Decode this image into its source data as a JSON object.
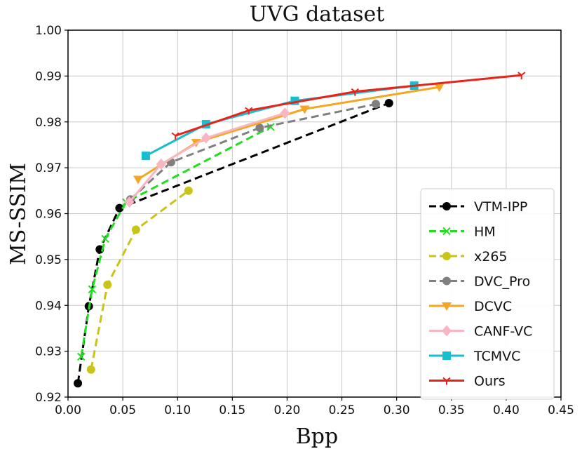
{
  "chart_data": {
    "type": "line",
    "title": "UVG dataset",
    "xlabel": "Bpp",
    "ylabel": "MS-SSIM",
    "xlim": [
      0.0,
      0.45
    ],
    "ylim": [
      0.92,
      1.0
    ],
    "xticks": [
      0.0,
      0.05,
      0.1,
      0.15,
      0.2,
      0.25,
      0.3,
      0.35,
      0.4,
      0.45
    ],
    "xtick_labels": [
      "0.00",
      "0.05",
      "0.10",
      "0.15",
      "0.20",
      "0.25",
      "0.30",
      "0.35",
      "0.40",
      "0.45"
    ],
    "yticks": [
      0.92,
      0.93,
      0.94,
      0.95,
      0.96,
      0.97,
      0.98,
      0.99,
      1.0
    ],
    "ytick_labels": [
      "0.92",
      "0.93",
      "0.94",
      "0.95",
      "0.96",
      "0.97",
      "0.98",
      "0.99",
      "1.00"
    ],
    "grid": true,
    "legend_position": "lower-right",
    "series": [
      {
        "name": "VTM-IPP",
        "color": "#000000",
        "linestyle": "dashed",
        "marker": "circle",
        "points": [
          [
            0.009,
            0.923
          ],
          [
            0.019,
            0.9398
          ],
          [
            0.029,
            0.9522
          ],
          [
            0.047,
            0.9612
          ],
          [
            0.293,
            0.9841
          ]
        ]
      },
      {
        "name": "HM",
        "color": "#22dd22",
        "linestyle": "dashed",
        "marker": "x",
        "points": [
          [
            0.012,
            0.9288
          ],
          [
            0.022,
            0.9435
          ],
          [
            0.034,
            0.9545
          ],
          [
            0.053,
            0.9625
          ],
          [
            0.185,
            0.9789
          ]
        ]
      },
      {
        "name": "x265",
        "color": "#c8c41a",
        "linestyle": "dashed",
        "marker": "circle",
        "points": [
          [
            0.021,
            0.926
          ],
          [
            0.036,
            0.9445
          ],
          [
            0.062,
            0.9565
          ],
          [
            0.11,
            0.965
          ]
        ]
      },
      {
        "name": "DVC_Pro",
        "color": "#808080",
        "linestyle": "dashed",
        "marker": "circle",
        "points": [
          [
            0.057,
            0.9631
          ],
          [
            0.094,
            0.9712
          ],
          [
            0.175,
            0.9787
          ],
          [
            0.281,
            0.9839
          ]
        ]
      },
      {
        "name": "DCVC",
        "color": "#f5a623",
        "linestyle": "solid",
        "marker": "triangle-down",
        "points": [
          [
            0.064,
            0.9675
          ],
          [
            0.117,
            0.9755
          ],
          [
            0.216,
            0.9828
          ],
          [
            0.339,
            0.9876
          ]
        ]
      },
      {
        "name": "CANF-VC",
        "color": "#f7b6c2",
        "linestyle": "solid",
        "marker": "diamond",
        "points": [
          [
            0.056,
            0.9625
          ],
          [
            0.085,
            0.9708
          ],
          [
            0.126,
            0.9765
          ],
          [
            0.198,
            0.9819
          ]
        ]
      },
      {
        "name": "TCMVC",
        "color": "#17becf",
        "linestyle": "solid",
        "marker": "square",
        "points": [
          [
            0.071,
            0.9726
          ],
          [
            0.126,
            0.9795
          ],
          [
            0.207,
            0.9846
          ],
          [
            0.316,
            0.9879
          ]
        ]
      },
      {
        "name": "Ours",
        "color": "#e8231a",
        "linestyle": "solid",
        "marker": "tri-down",
        "points": [
          [
            0.098,
            0.977
          ],
          [
            0.165,
            0.9825
          ],
          [
            0.262,
            0.9866
          ],
          [
            0.414,
            0.9902
          ]
        ]
      }
    ]
  }
}
